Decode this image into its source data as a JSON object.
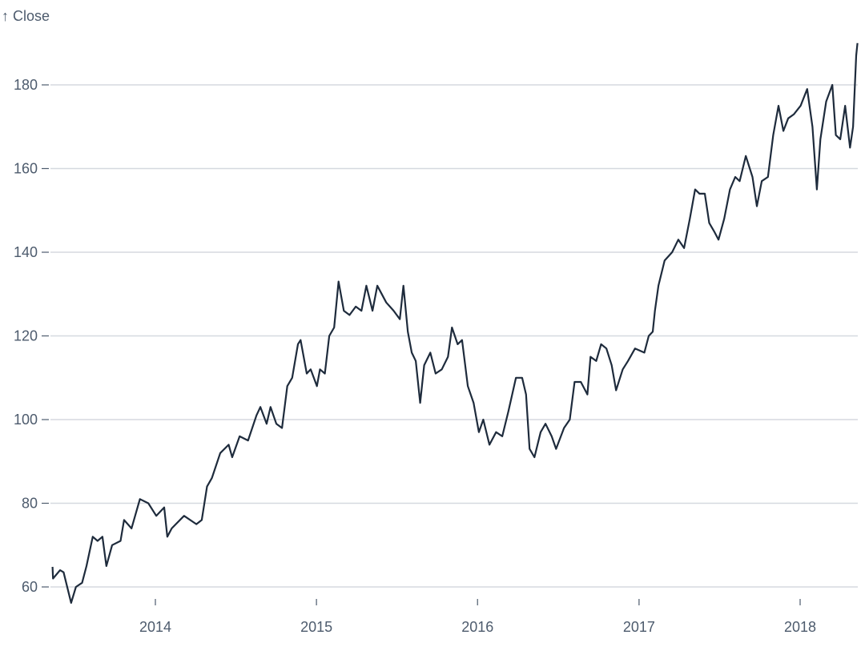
{
  "chart_data": {
    "type": "line",
    "ylabel": "↑ Close",
    "xlabel": "",
    "ylim": [
      56,
      192
    ],
    "xlim": [
      "2013-05-13",
      "2018-05-11"
    ],
    "grid": "horizontal",
    "y_ticks": [
      "60",
      "80",
      "100",
      "120",
      "140",
      "160",
      "180"
    ],
    "x_ticks": [
      "2014",
      "2015",
      "2016",
      "2017",
      "2018"
    ],
    "line_color": "#1e2b3c",
    "series": [
      {
        "x": [
          "2013-05-13",
          "2013-05-14",
          "2013-05-30",
          "2013-06-07",
          "2013-06-24",
          "2013-07-05",
          "2013-07-19",
          "2013-07-29",
          "2013-08-12",
          "2013-08-23",
          "2013-09-03",
          "2013-09-12",
          "2013-09-25",
          "2013-10-14",
          "2013-10-22",
          "2013-11-08",
          "2013-11-27",
          "2013-12-16",
          "2014-01-03",
          "2014-01-21",
          "2014-01-28",
          "2014-02-07",
          "2014-03-07",
          "2014-04-04",
          "2014-04-16",
          "2014-04-28",
          "2014-05-09",
          "2014-05-28",
          "2014-06-16",
          "2014-06-24",
          "2014-07-11",
          "2014-07-30",
          "2014-08-18",
          "2014-08-27",
          "2014-09-10",
          "2014-09-19",
          "2014-10-02",
          "2014-10-15",
          "2014-10-27",
          "2014-11-07",
          "2014-11-20",
          "2014-11-26",
          "2014-12-10",
          "2014-12-19",
          "2015-01-02",
          "2015-01-09",
          "2015-01-20",
          "2015-01-30",
          "2015-02-10",
          "2015-02-20",
          "2015-03-04",
          "2015-03-17",
          "2015-03-31",
          "2015-04-13",
          "2015-04-24",
          "2015-05-08",
          "2015-05-19",
          "2015-06-08",
          "2015-06-25",
          "2015-07-09",
          "2015-07-17",
          "2015-07-27",
          "2015-08-05",
          "2015-08-14",
          "2015-08-24",
          "2015-09-02",
          "2015-09-16",
          "2015-09-28",
          "2015-10-12",
          "2015-10-26",
          "2015-11-04",
          "2015-11-17",
          "2015-11-27",
          "2015-12-10",
          "2015-12-23",
          "2016-01-04",
          "2016-01-14",
          "2016-01-28",
          "2016-02-12",
          "2016-02-26",
          "2016-03-11",
          "2016-03-28",
          "2016-04-11",
          "2016-04-20",
          "2016-04-28",
          "2016-05-09",
          "2016-05-23",
          "2016-06-03",
          "2016-06-17",
          "2016-06-27",
          "2016-07-15",
          "2016-07-28",
          "2016-08-08",
          "2016-08-22",
          "2016-09-06",
          "2016-09-13",
          "2016-09-26",
          "2016-10-07",
          "2016-10-19",
          "2016-10-31",
          "2016-11-10",
          "2016-11-25",
          "2016-12-07",
          "2016-12-23",
          "2017-01-13",
          "2017-01-23",
          "2017-02-01",
          "2017-02-06",
          "2017-02-14",
          "2017-02-28",
          "2017-03-17",
          "2017-03-31",
          "2017-04-13",
          "2017-04-26",
          "2017-05-08",
          "2017-05-18",
          "2017-05-30",
          "2017-06-09",
          "2017-06-20",
          "2017-06-30",
          "2017-07-13",
          "2017-07-26",
          "2017-08-07",
          "2017-08-17",
          "2017-08-31",
          "2017-09-15",
          "2017-09-25",
          "2017-10-06",
          "2017-10-20",
          "2017-11-01",
          "2017-11-13",
          "2017-11-24",
          "2017-12-05",
          "2017-12-18",
          "2018-01-02",
          "2018-01-17",
          "2018-01-29",
          "2018-02-08",
          "2018-02-16",
          "2018-03-01",
          "2018-03-15",
          "2018-03-23",
          "2018-04-02",
          "2018-04-13",
          "2018-04-24",
          "2018-05-01",
          "2018-05-08",
          "2018-05-11"
        ],
        "y": [
          64.8,
          62,
          64,
          63.5,
          56.2,
          60,
          61,
          65,
          72,
          71,
          72,
          65,
          70,
          71,
          76,
          74,
          81,
          80,
          77,
          79,
          72,
          74,
          77,
          75,
          76,
          84,
          86,
          92,
          94,
          91,
          96,
          95,
          101,
          103,
          99,
          103,
          99,
          98,
          108,
          110,
          118,
          119,
          111,
          112,
          108,
          112,
          111,
          120,
          122,
          133,
          126,
          125,
          127,
          126,
          132,
          126,
          132,
          128,
          126,
          124,
          132,
          121,
          116,
          114,
          104,
          113,
          116,
          111,
          112,
          115,
          122,
          118,
          119,
          108,
          104,
          97,
          100,
          94,
          97,
          96,
          102,
          110,
          110,
          106,
          93,
          91,
          97,
          99,
          96,
          93,
          98,
          100,
          109,
          109,
          106,
          115,
          114,
          118,
          117,
          113,
          107,
          112,
          114,
          117,
          116,
          120,
          121,
          126,
          132,
          138,
          140,
          143,
          141,
          148,
          155,
          154,
          154,
          147,
          145,
          143,
          148,
          155,
          158,
          157,
          163,
          158,
          151,
          157,
          158,
          168,
          175,
          169,
          172,
          173,
          175,
          179,
          170,
          155,
          167,
          176,
          180,
          168,
          167,
          175,
          165,
          170,
          187,
          190
        ]
      }
    ]
  }
}
